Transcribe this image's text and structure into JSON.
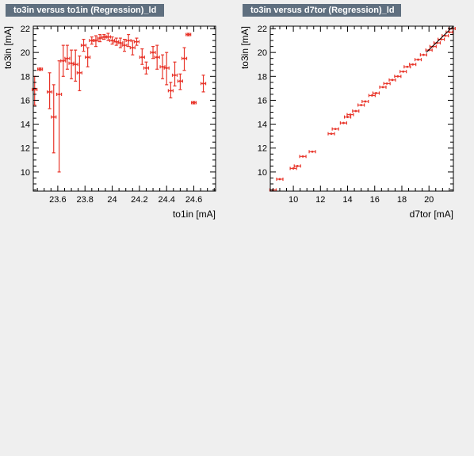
{
  "chart_data": [
    {
      "type": "scatter",
      "title": "to3in versus to1in (Regression)_ld",
      "xlabel": "to1in  [mA]",
      "ylabel": "to3in  [mA]",
      "xlim": [
        23.42,
        24.76
      ],
      "ylim": [
        8.4,
        22.2
      ],
      "x_ticks": [
        23.6,
        23.8,
        24,
        24.2,
        24.4,
        24.6
      ],
      "y_ticks": [
        10,
        12,
        14,
        16,
        18,
        20,
        22
      ],
      "colors": {
        "profile": "#e8352a",
        "scatter": "#00bb00"
      },
      "series": [
        {
          "type": "profile",
          "points": [
            {
              "x": 23.43,
              "y": 16.9,
              "ylo": 15.6,
              "yhi": 18.0
            },
            {
              "x": 23.47,
              "y": 18.6,
              "ylo": 18.5,
              "yhi": 18.7
            },
            {
              "x": 23.54,
              "y": 16.7,
              "ylo": 15.3,
              "yhi": 18.3
            },
            {
              "x": 23.57,
              "y": 14.6,
              "ylo": 11.6,
              "yhi": 17.3
            },
            {
              "x": 23.61,
              "y": 16.5,
              "ylo": 10.0,
              "yhi": 19.3
            },
            {
              "x": 23.64,
              "y": 19.3,
              "ylo": 18.0,
              "yhi": 20.6
            },
            {
              "x": 23.67,
              "y": 19.5,
              "ylo": 18.6,
              "yhi": 20.6
            },
            {
              "x": 23.7,
              "y": 19.1,
              "ylo": 17.8,
              "yhi": 20.2
            },
            {
              "x": 23.73,
              "y": 19.0,
              "ylo": 17.6,
              "yhi": 20.2
            },
            {
              "x": 23.76,
              "y": 18.3,
              "ylo": 16.8,
              "yhi": 19.7
            },
            {
              "x": 23.79,
              "y": 20.6,
              "ylo": 20.1,
              "yhi": 21.1
            },
            {
              "x": 23.82,
              "y": 19.6,
              "ylo": 18.8,
              "yhi": 20.4
            },
            {
              "x": 23.85,
              "y": 21.0,
              "ylo": 20.7,
              "yhi": 21.3
            },
            {
              "x": 23.88,
              "y": 21.0,
              "ylo": 20.5,
              "yhi": 21.4
            },
            {
              "x": 23.91,
              "y": 21.2,
              "ylo": 20.9,
              "yhi": 21.5
            },
            {
              "x": 23.94,
              "y": 21.3,
              "ylo": 21.1,
              "yhi": 21.5
            },
            {
              "x": 23.97,
              "y": 21.3,
              "ylo": 21.0,
              "yhi": 21.6
            },
            {
              "x": 24.0,
              "y": 21.0,
              "ylo": 20.7,
              "yhi": 21.3
            },
            {
              "x": 24.03,
              "y": 20.9,
              "ylo": 20.6,
              "yhi": 21.2
            },
            {
              "x": 24.06,
              "y": 20.8,
              "ylo": 20.4,
              "yhi": 21.2
            },
            {
              "x": 24.09,
              "y": 20.6,
              "ylo": 20.1,
              "yhi": 21.1
            },
            {
              "x": 24.12,
              "y": 21.0,
              "ylo": 20.5,
              "yhi": 21.5
            },
            {
              "x": 24.15,
              "y": 20.4,
              "ylo": 19.8,
              "yhi": 21.0
            },
            {
              "x": 24.18,
              "y": 20.9,
              "ylo": 20.6,
              "yhi": 21.2
            },
            {
              "x": 24.22,
              "y": 19.6,
              "ylo": 19.0,
              "yhi": 20.3
            },
            {
              "x": 24.25,
              "y": 18.7,
              "ylo": 18.2,
              "yhi": 19.2
            },
            {
              "x": 24.3,
              "y": 20.0,
              "ylo": 19.5,
              "yhi": 20.5
            },
            {
              "x": 24.33,
              "y": 19.6,
              "ylo": 18.6,
              "yhi": 20.6
            },
            {
              "x": 24.37,
              "y": 18.8,
              "ylo": 17.8,
              "yhi": 19.8
            },
            {
              "x": 24.4,
              "y": 18.7,
              "ylo": 17.3,
              "yhi": 20.0
            },
            {
              "x": 24.43,
              "y": 16.8,
              "ylo": 16.2,
              "yhi": 17.5
            },
            {
              "x": 24.46,
              "y": 18.1,
              "ylo": 17.2,
              "yhi": 19.2
            },
            {
              "x": 24.5,
              "y": 17.6,
              "ylo": 16.9,
              "yhi": 18.2
            },
            {
              "x": 24.53,
              "y": 19.5,
              "ylo": 18.5,
              "yhi": 20.4
            },
            {
              "x": 24.56,
              "y": 21.5,
              "ylo": 21.4,
              "yhi": 21.6
            },
            {
              "x": 24.6,
              "y": 15.8,
              "ylo": 15.7,
              "yhi": 15.9
            },
            {
              "x": 24.67,
              "y": 17.4,
              "ylo": 16.7,
              "yhi": 18.1
            }
          ]
        }
      ]
    },
    {
      "type": "scatter",
      "title": "to3in versus d7tor (Regression)_ld",
      "xlabel": "d7tor  [mA]",
      "ylabel": "to3in  [mA]",
      "xlim": [
        8.3,
        21.8
      ],
      "ylim": [
        8.4,
        22.2
      ],
      "x_ticks": [
        10,
        12,
        14,
        16,
        18,
        20
      ],
      "y_ticks": [
        10,
        12,
        14,
        16,
        18,
        20,
        22
      ],
      "colors": {
        "profile": "#e8352a",
        "scatter": "#00bb00"
      },
      "series": [
        {
          "type": "profile",
          "points": [
            {
              "x": 8.5,
              "y": 8.5
            },
            {
              "x": 9.0,
              "y": 9.4
            },
            {
              "x": 10.0,
              "y": 10.3
            },
            {
              "x": 10.3,
              "y": 10.5
            },
            {
              "x": 10.7,
              "y": 11.3
            },
            {
              "x": 11.4,
              "y": 11.7
            },
            {
              "x": 12.8,
              "y": 13.2
            },
            {
              "x": 13.1,
              "y": 13.6
            },
            {
              "x": 13.7,
              "y": 14.1
            },
            {
              "x": 14.0,
              "y": 14.6
            },
            {
              "x": 14.2,
              "y": 14.8
            },
            {
              "x": 14.6,
              "y": 15.1
            },
            {
              "x": 15.0,
              "y": 15.6
            },
            {
              "x": 15.3,
              "y": 15.9
            },
            {
              "x": 15.8,
              "y": 16.4
            },
            {
              "x": 16.1,
              "y": 16.6
            },
            {
              "x": 16.6,
              "y": 17.1
            },
            {
              "x": 16.9,
              "y": 17.4
            },
            {
              "x": 17.3,
              "y": 17.7
            },
            {
              "x": 17.7,
              "y": 18.0
            },
            {
              "x": 18.1,
              "y": 18.4
            },
            {
              "x": 18.4,
              "y": 18.8
            },
            {
              "x": 18.8,
              "y": 19.0
            },
            {
              "x": 19.2,
              "y": 19.4
            },
            {
              "x": 19.6,
              "y": 19.8
            },
            {
              "x": 20.0,
              "y": 20.2
            },
            {
              "x": 20.3,
              "y": 20.5
            },
            {
              "x": 20.6,
              "y": 20.8
            },
            {
              "x": 20.9,
              "y": 21.1
            },
            {
              "x": 21.2,
              "y": 21.4
            },
            {
              "x": 21.5,
              "y": 21.7
            },
            {
              "x": 21.7,
              "y": 22.0
            }
          ]
        }
      ]
    }
  ]
}
